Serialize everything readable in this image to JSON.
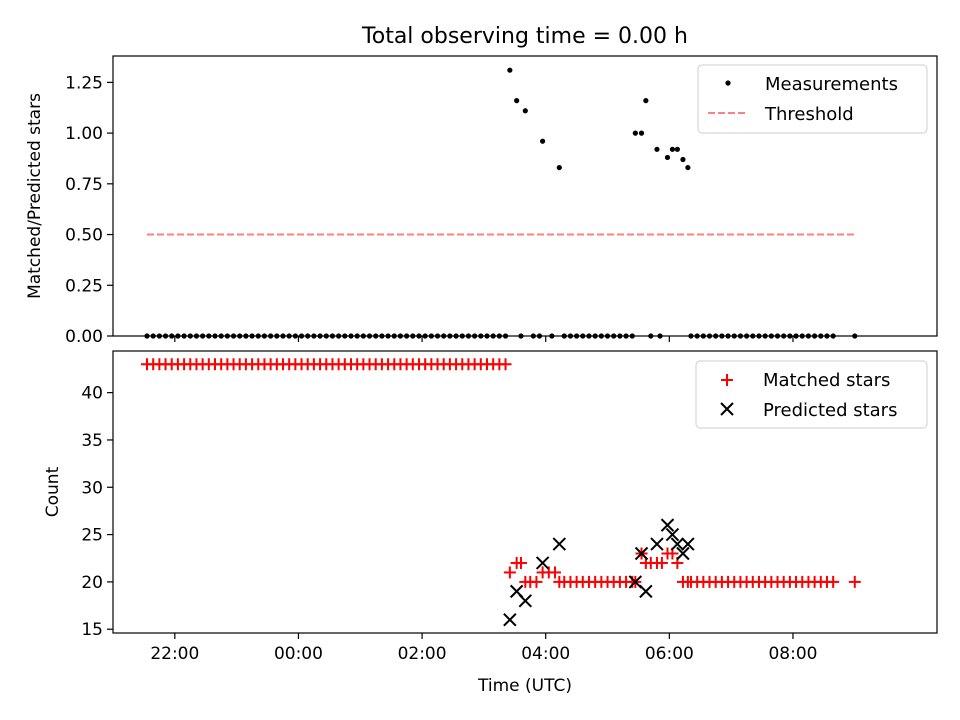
{
  "figure": {
    "title": "Total observing time = 0.00 h"
  },
  "x_axis": {
    "label": "Time (UTC)",
    "ticks": [
      {
        "label": "22:00",
        "t": 22.0
      },
      {
        "label": "00:00",
        "t": 24.0
      },
      {
        "label": "02:00",
        "t": 26.0
      },
      {
        "label": "04:00",
        "t": 28.0
      },
      {
        "label": "06:00",
        "t": 30.0
      },
      {
        "label": "08:00",
        "t": 32.0
      }
    ],
    "range_hours": [
      21.0,
      34.33
    ]
  },
  "chart_data": [
    {
      "type": "scatter",
      "title": "Total observing time = 0.00 h",
      "xlabel": "",
      "ylabel": "Matched/Predicted stars",
      "ylim": [
        0.0,
        1.38
      ],
      "yticks": [
        "0.00",
        "0.25",
        "0.50",
        "0.75",
        "1.00",
        "1.25"
      ],
      "legend_position": "top-right",
      "series": [
        {
          "name": "Measurements",
          "kind": "points",
          "color": "#000000",
          "points": [
            [
              27.42,
              1.31
            ],
            [
              27.53,
              1.16
            ],
            [
              27.67,
              1.11
            ],
            [
              27.95,
              0.96
            ],
            [
              28.22,
              0.83
            ],
            [
              29.45,
              1.0
            ],
            [
              29.55,
              1.0
            ],
            [
              29.62,
              1.16
            ],
            [
              29.8,
              0.92
            ],
            [
              29.97,
              0.88
            ],
            [
              30.05,
              0.92
            ],
            [
              30.13,
              0.92
            ],
            [
              30.22,
              0.87
            ],
            [
              30.3,
              0.83
            ],
            [
              21.55,
              0.0
            ],
            [
              21.65,
              0.0
            ],
            [
              21.75,
              0.0
            ],
            [
              21.85,
              0.0
            ],
            [
              21.95,
              0.0
            ],
            [
              22.05,
              0.0
            ],
            [
              22.15,
              0.0
            ],
            [
              22.25,
              0.0
            ],
            [
              22.35,
              0.0
            ],
            [
              22.45,
              0.0
            ],
            [
              22.55,
              0.0
            ],
            [
              22.65,
              0.0
            ],
            [
              22.75,
              0.0
            ],
            [
              22.85,
              0.0
            ],
            [
              22.95,
              0.0
            ],
            [
              23.05,
              0.0
            ],
            [
              23.15,
              0.0
            ],
            [
              23.25,
              0.0
            ],
            [
              23.35,
              0.0
            ],
            [
              23.45,
              0.0
            ],
            [
              23.55,
              0.0
            ],
            [
              23.65,
              0.0
            ],
            [
              23.75,
              0.0
            ],
            [
              23.85,
              0.0
            ],
            [
              23.95,
              0.0
            ],
            [
              24.05,
              0.0
            ],
            [
              24.15,
              0.0
            ],
            [
              24.25,
              0.0
            ],
            [
              24.35,
              0.0
            ],
            [
              24.45,
              0.0
            ],
            [
              24.55,
              0.0
            ],
            [
              24.65,
              0.0
            ],
            [
              24.75,
              0.0
            ],
            [
              24.85,
              0.0
            ],
            [
              24.95,
              0.0
            ],
            [
              25.05,
              0.0
            ],
            [
              25.15,
              0.0
            ],
            [
              25.25,
              0.0
            ],
            [
              25.35,
              0.0
            ],
            [
              25.45,
              0.0
            ],
            [
              25.55,
              0.0
            ],
            [
              25.65,
              0.0
            ],
            [
              25.75,
              0.0
            ],
            [
              25.85,
              0.0
            ],
            [
              25.95,
              0.0
            ],
            [
              26.05,
              0.0
            ],
            [
              26.15,
              0.0
            ],
            [
              26.25,
              0.0
            ],
            [
              26.35,
              0.0
            ],
            [
              26.45,
              0.0
            ],
            [
              26.55,
              0.0
            ],
            [
              26.65,
              0.0
            ],
            [
              26.75,
              0.0
            ],
            [
              26.85,
              0.0
            ],
            [
              26.95,
              0.0
            ],
            [
              27.05,
              0.0
            ],
            [
              27.15,
              0.0
            ],
            [
              27.25,
              0.0
            ],
            [
              27.35,
              0.0
            ],
            [
              27.6,
              0.0
            ],
            [
              27.8,
              0.0
            ],
            [
              27.9,
              0.0
            ],
            [
              28.1,
              0.0
            ],
            [
              28.3,
              0.0
            ],
            [
              28.4,
              0.0
            ],
            [
              28.5,
              0.0
            ],
            [
              28.6,
              0.0
            ],
            [
              28.7,
              0.0
            ],
            [
              28.8,
              0.0
            ],
            [
              28.9,
              0.0
            ],
            [
              29.0,
              0.0
            ],
            [
              29.1,
              0.0
            ],
            [
              29.2,
              0.0
            ],
            [
              29.3,
              0.0
            ],
            [
              29.4,
              0.0
            ],
            [
              29.7,
              0.0
            ],
            [
              29.85,
              0.0
            ],
            [
              30.35,
              0.0
            ],
            [
              30.45,
              0.0
            ],
            [
              30.55,
              0.0
            ],
            [
              30.65,
              0.0
            ],
            [
              30.75,
              0.0
            ],
            [
              30.85,
              0.0
            ],
            [
              30.95,
              0.0
            ],
            [
              31.05,
              0.0
            ],
            [
              31.15,
              0.0
            ],
            [
              31.25,
              0.0
            ],
            [
              31.35,
              0.0
            ],
            [
              31.45,
              0.0
            ],
            [
              31.55,
              0.0
            ],
            [
              31.65,
              0.0
            ],
            [
              31.75,
              0.0
            ],
            [
              31.85,
              0.0
            ],
            [
              31.95,
              0.0
            ],
            [
              32.05,
              0.0
            ],
            [
              32.15,
              0.0
            ],
            [
              32.25,
              0.0
            ],
            [
              32.35,
              0.0
            ],
            [
              32.45,
              0.0
            ],
            [
              32.55,
              0.0
            ],
            [
              32.65,
              0.0
            ],
            [
              33.0,
              0.0
            ]
          ]
        },
        {
          "name": "Threshold",
          "kind": "dashed-line",
          "color": "#ff8080",
          "points": [
            [
              21.55,
              0.5
            ],
            [
              33.0,
              0.5
            ]
          ]
        }
      ]
    },
    {
      "type": "scatter",
      "title": "",
      "xlabel": "Time (UTC)",
      "ylabel": "Count",
      "ylim": [
        14.6,
        44.4
      ],
      "yticks": [
        "15",
        "20",
        "25",
        "30",
        "35",
        "40"
      ],
      "legend_position": "top-right",
      "series": [
        {
          "name": "Matched stars",
          "marker": "plus",
          "color": "#ff0000",
          "points": [
            [
              21.55,
              43
            ],
            [
              21.65,
              43
            ],
            [
              21.75,
              43
            ],
            [
              21.85,
              43
            ],
            [
              21.95,
              43
            ],
            [
              22.05,
              43
            ],
            [
              22.15,
              43
            ],
            [
              22.25,
              43
            ],
            [
              22.35,
              43
            ],
            [
              22.45,
              43
            ],
            [
              22.55,
              43
            ],
            [
              22.65,
              43
            ],
            [
              22.75,
              43
            ],
            [
              22.85,
              43
            ],
            [
              22.95,
              43
            ],
            [
              23.05,
              43
            ],
            [
              23.15,
              43
            ],
            [
              23.25,
              43
            ],
            [
              23.35,
              43
            ],
            [
              23.45,
              43
            ],
            [
              23.55,
              43
            ],
            [
              23.65,
              43
            ],
            [
              23.75,
              43
            ],
            [
              23.85,
              43
            ],
            [
              23.95,
              43
            ],
            [
              24.05,
              43
            ],
            [
              24.15,
              43
            ],
            [
              24.25,
              43
            ],
            [
              24.35,
              43
            ],
            [
              24.45,
              43
            ],
            [
              24.55,
              43
            ],
            [
              24.65,
              43
            ],
            [
              24.75,
              43
            ],
            [
              24.85,
              43
            ],
            [
              24.95,
              43
            ],
            [
              25.05,
              43
            ],
            [
              25.15,
              43
            ],
            [
              25.25,
              43
            ],
            [
              25.35,
              43
            ],
            [
              25.45,
              43
            ],
            [
              25.55,
              43
            ],
            [
              25.65,
              43
            ],
            [
              25.75,
              43
            ],
            [
              25.85,
              43
            ],
            [
              25.95,
              43
            ],
            [
              26.05,
              43
            ],
            [
              26.15,
              43
            ],
            [
              26.25,
              43
            ],
            [
              26.35,
              43
            ],
            [
              26.45,
              43
            ],
            [
              26.55,
              43
            ],
            [
              26.65,
              43
            ],
            [
              26.75,
              43
            ],
            [
              26.85,
              43
            ],
            [
              26.95,
              43
            ],
            [
              27.05,
              43
            ],
            [
              27.15,
              43
            ],
            [
              27.25,
              43
            ],
            [
              27.35,
              43
            ],
            [
              27.42,
              21
            ],
            [
              27.53,
              22
            ],
            [
              27.6,
              22
            ],
            [
              27.67,
              20
            ],
            [
              27.75,
              20
            ],
            [
              27.85,
              20
            ],
            [
              27.95,
              21
            ],
            [
              28.05,
              21
            ],
            [
              28.15,
              21
            ],
            [
              28.22,
              20
            ],
            [
              28.3,
              20
            ],
            [
              28.4,
              20
            ],
            [
              28.5,
              20
            ],
            [
              28.6,
              20
            ],
            [
              28.7,
              20
            ],
            [
              28.8,
              20
            ],
            [
              28.9,
              20
            ],
            [
              29.0,
              20
            ],
            [
              29.1,
              20
            ],
            [
              29.2,
              20
            ],
            [
              29.3,
              20
            ],
            [
              29.4,
              20
            ],
            [
              29.45,
              20
            ],
            [
              29.55,
              23
            ],
            [
              29.62,
              22
            ],
            [
              29.7,
              22
            ],
            [
              29.8,
              22
            ],
            [
              29.88,
              22
            ],
            [
              29.97,
              23
            ],
            [
              30.05,
              23
            ],
            [
              30.13,
              22
            ],
            [
              30.22,
              20
            ],
            [
              30.3,
              20
            ],
            [
              30.35,
              20
            ],
            [
              30.45,
              20
            ],
            [
              30.55,
              20
            ],
            [
              30.65,
              20
            ],
            [
              30.75,
              20
            ],
            [
              30.85,
              20
            ],
            [
              30.95,
              20
            ],
            [
              31.05,
              20
            ],
            [
              31.15,
              20
            ],
            [
              31.25,
              20
            ],
            [
              31.35,
              20
            ],
            [
              31.45,
              20
            ],
            [
              31.55,
              20
            ],
            [
              31.65,
              20
            ],
            [
              31.75,
              20
            ],
            [
              31.85,
              20
            ],
            [
              31.95,
              20
            ],
            [
              32.05,
              20
            ],
            [
              32.15,
              20
            ],
            [
              32.25,
              20
            ],
            [
              32.35,
              20
            ],
            [
              32.45,
              20
            ],
            [
              32.55,
              20
            ],
            [
              32.65,
              20
            ],
            [
              33.0,
              20
            ]
          ]
        },
        {
          "name": "Predicted stars",
          "marker": "x",
          "color": "#000000",
          "points": [
            [
              27.42,
              16
            ],
            [
              27.53,
              19
            ],
            [
              27.67,
              18
            ],
            [
              27.95,
              22
            ],
            [
              28.22,
              24
            ],
            [
              29.45,
              20
            ],
            [
              29.55,
              23
            ],
            [
              29.62,
              19
            ],
            [
              29.8,
              24
            ],
            [
              29.97,
              26
            ],
            [
              30.05,
              25
            ],
            [
              30.13,
              24
            ],
            [
              30.22,
              23
            ],
            [
              30.3,
              24
            ]
          ]
        }
      ]
    }
  ]
}
